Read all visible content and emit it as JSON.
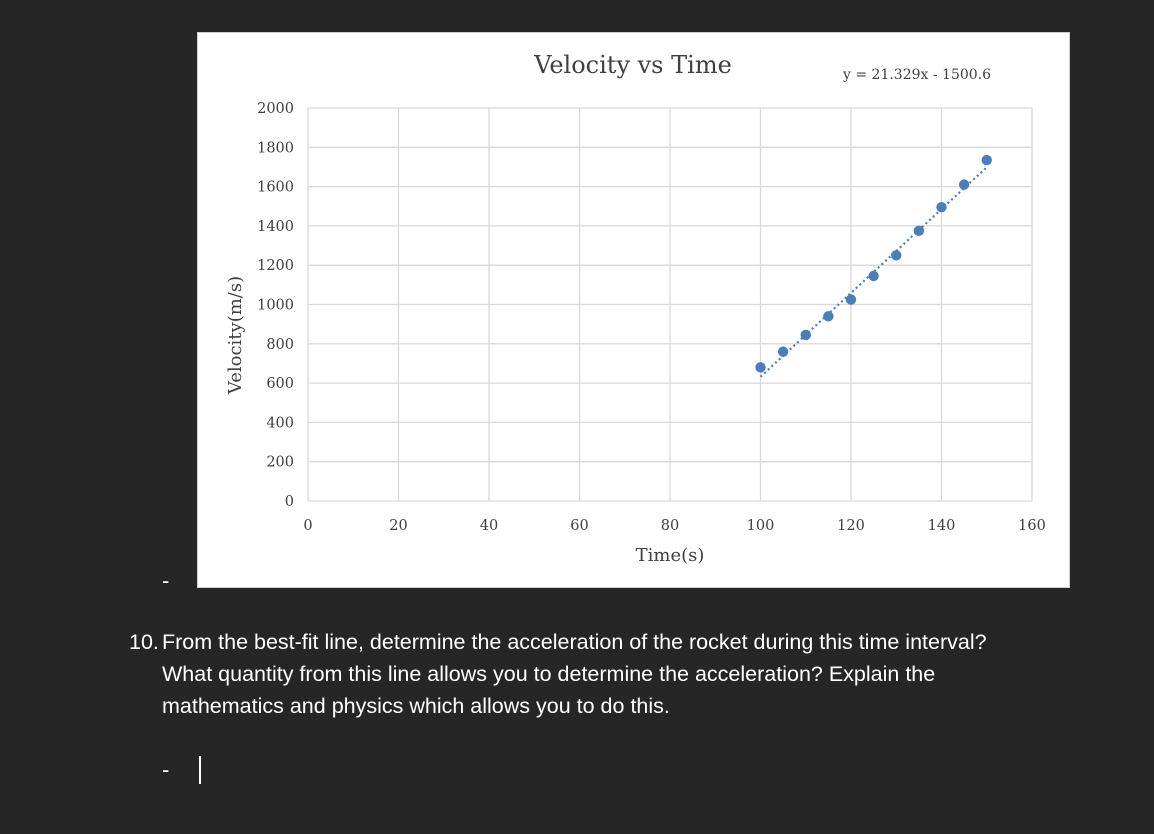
{
  "page": {
    "background": "#262626",
    "list_markers": {
      "first": "-",
      "answer": "-"
    }
  },
  "question": {
    "number": "10.",
    "text": "From the best-fit line, determine the acceleration of the rocket during this time interval? What quantity from this line allows you to determine the acceleration? Explain the mathematics and physics which allows you to do this."
  },
  "chart_data": {
    "type": "scatter",
    "title": "Velocity vs Time",
    "xlabel": "Time(s)",
    "ylabel": "Velocity(m/s)",
    "xlim": [
      0,
      160
    ],
    "ylim": [
      0,
      2000
    ],
    "xticks": [
      0,
      20,
      40,
      60,
      80,
      100,
      120,
      140,
      160
    ],
    "yticks": [
      0,
      200,
      400,
      600,
      800,
      1000,
      1200,
      1400,
      1600,
      1800,
      2000
    ],
    "grid": true,
    "series": [
      {
        "x": [
          100,
          105,
          110,
          115,
          120,
          125,
          130,
          135,
          140,
          145,
          150
        ],
        "y": [
          680,
          760,
          845,
          940,
          1025,
          1145,
          1250,
          1375,
          1495,
          1610,
          1735
        ],
        "color": "#4a7ebb"
      }
    ],
    "trendline": {
      "type": "linear",
      "slope": 21.329,
      "intercept": -1500.6,
      "x_range": [
        100,
        150
      ],
      "style": "dotted",
      "color": "#4a7ebb",
      "equation_label": "y = 21.329x - 1500.6"
    }
  }
}
